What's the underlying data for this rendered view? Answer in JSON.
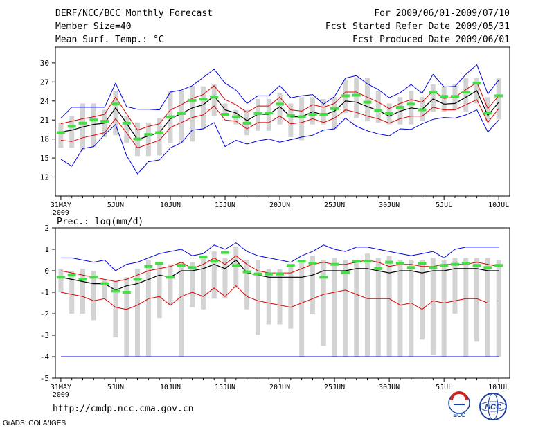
{
  "header": {
    "left_lines": [
      "DERF/NCC/BCC Monthly Forecast",
      "Member Size=40",
      "Mean Surf. Temp.: °C"
    ],
    "right_lines": [
      "For 2009/06/01-2009/07/10",
      "Fcst Started Refer Date 2009/05/31",
      "Fcst Produced Date 2009/06/01"
    ]
  },
  "footer": {
    "url": "http://cmdp.ncc.cma.gov.cn",
    "grads_credit": "GrADS: COLA/IGES",
    "logo_bcc": "BCC",
    "logo_ncc": "NCC"
  },
  "colors": {
    "frame": "#000000",
    "box": "#d3d3d3",
    "median": "#44dd44",
    "envelope": "#0000dd",
    "spread": "#dd0000",
    "mean": "#000000"
  },
  "chart_data": [
    {
      "type": "line",
      "title": "Mean Surf. Temp.: °C",
      "x": [
        0,
        1,
        2,
        3,
        4,
        5,
        6,
        7,
        8,
        9,
        10,
        11,
        12,
        13,
        14,
        15,
        16,
        17,
        18,
        19,
        20,
        21,
        22,
        23,
        24,
        25,
        26,
        27,
        28,
        29,
        30,
        31,
        32,
        33,
        34,
        35,
        36,
        37,
        38,
        39,
        40
      ],
      "x_tick_positions": [
        0,
        5,
        10,
        15,
        20,
        25,
        30,
        35,
        40
      ],
      "x_tick_labels": [
        "31MAY",
        "5JUN",
        "10JUN",
        "15JUN",
        "20JUN",
        "25JUN",
        "30JUN",
        "5JUL",
        "10JUL"
      ],
      "x_year_label": "2009",
      "xlim": [
        -0.5,
        41
      ],
      "ylim": [
        9,
        32.5
      ],
      "yticks": [
        12,
        15,
        18,
        21,
        24,
        27,
        30
      ],
      "series": [
        {
          "name": "ensemble max",
          "values": [
            14.8,
            13.7,
            16.5,
            16.8,
            18.7,
            20.3,
            15.4,
            12.5,
            14.4,
            14.7,
            16.6,
            17.4,
            19.4,
            19.6,
            20.6,
            16.8,
            17.8,
            17.2,
            17.7,
            18.0,
            17.5,
            17.9,
            18.3,
            18.6,
            19.4,
            19.6,
            21.3,
            20.0,
            19.3,
            18.8,
            18.5,
            19.6,
            19.5,
            20.4,
            21.1,
            21.4,
            21.3,
            21.8,
            22.6,
            19.1,
            21.0
          ]
        },
        {
          "name": "ensemble min",
          "values": [
            21.3,
            23.0,
            23.0,
            23.0,
            23.0,
            26.8,
            23.1,
            22.7,
            22.7,
            22.6,
            25.4,
            25.7,
            26.4,
            27.7,
            29.0,
            26.8,
            25.7,
            23.6,
            24.8,
            24.8,
            26.4,
            24.5,
            24.8,
            25.0,
            23.5,
            24.7,
            27.6,
            28.0,
            26.7,
            25.8,
            24.5,
            25.3,
            26.6,
            25.2,
            28.2,
            26.2,
            26.3,
            28.2,
            29.7,
            25.1,
            27.3
          ]
        },
        {
          "name": "mean - std",
          "values": [
            17.8,
            17.6,
            18.2,
            18.6,
            19.0,
            21.2,
            19.0,
            16.6,
            17.2,
            17.8,
            19.8,
            20.6,
            21.4,
            21.8,
            23.2,
            21.0,
            20.8,
            19.6,
            20.6,
            20.6,
            21.6,
            20.4,
            20.6,
            21.2,
            20.6,
            21.3,
            22.6,
            22.2,
            21.6,
            21.2,
            20.5,
            21.2,
            21.6,
            21.6,
            23.0,
            22.6,
            22.6,
            23.4,
            24.2,
            20.6,
            22.8
          ]
        },
        {
          "name": "mean + std",
          "values": [
            20.4,
            20.8,
            21.2,
            21.5,
            21.9,
            24.6,
            22.0,
            19.4,
            20.0,
            20.4,
            22.6,
            23.4,
            24.4,
            25.0,
            26.4,
            24.2,
            23.4,
            22.2,
            23.2,
            23.2,
            24.6,
            22.6,
            22.4,
            23.4,
            23.0,
            23.6,
            25.4,
            25.4,
            24.6,
            23.8,
            22.8,
            23.6,
            24.2,
            23.8,
            25.6,
            24.4,
            24.6,
            25.8,
            26.9,
            22.8,
            24.8
          ]
        },
        {
          "name": "ensemble mean",
          "values": [
            19.1,
            19.4,
            19.9,
            20.3,
            20.5,
            22.9,
            20.5,
            17.9,
            18.5,
            19.0,
            21.2,
            22.0,
            22.9,
            23.4,
            24.8,
            22.6,
            22.1,
            20.9,
            21.9,
            21.9,
            23.1,
            21.5,
            21.5,
            22.3,
            21.8,
            22.4,
            24.0,
            23.8,
            23.1,
            22.5,
            21.6,
            22.4,
            22.9,
            22.7,
            24.3,
            23.5,
            23.6,
            24.6,
            25.6,
            21.7,
            23.8
          ]
        },
        {
          "name": "median",
          "values": [
            19.0,
            20.0,
            20.5,
            21.0,
            20.8,
            23.5,
            20.5,
            18.0,
            18.7,
            19.0,
            21.5,
            22.0,
            24.1,
            24.3,
            24.6,
            21.9,
            21.5,
            20.5,
            22.0,
            22.1,
            23.5,
            21.7,
            21.5,
            21.9,
            21.9,
            22.8,
            24.8,
            24.9,
            23.8,
            22.5,
            22.0,
            23.0,
            23.5,
            22.6,
            25.4,
            24.7,
            24.7,
            25.4,
            26.8,
            22.1,
            24.8
          ]
        },
        {
          "name": "box q1",
          "values": [
            16.6,
            16.6,
            16.3,
            16.8,
            18.3,
            18.6,
            17.4,
            15.3,
            15.3,
            15.4,
            17.3,
            17.3,
            17.6,
            19.6,
            21.6,
            21.6,
            20.3,
            18.6,
            19.3,
            19.3,
            20.3,
            18.3,
            17.8,
            20.3,
            20.3,
            19.6,
            22.1,
            21.3,
            20.8,
            20.6,
            20.3,
            20.3,
            20.3,
            20.8,
            22.3,
            22.3,
            22.6,
            22.3,
            23.6,
            20.8,
            21.1
          ]
        },
        {
          "name": "box q3",
          "values": [
            20.6,
            21.6,
            23.6,
            23.6,
            22.6,
            25.6,
            21.6,
            20.6,
            20.6,
            21.3,
            25.6,
            25.6,
            26.3,
            26.3,
            26.6,
            23.6,
            22.6,
            22.6,
            24.3,
            24.3,
            25.3,
            23.6,
            24.6,
            24.6,
            24.3,
            24.6,
            27.3,
            27.6,
            27.6,
            25.6,
            23.6,
            24.6,
            25.6,
            24.6,
            26.6,
            26.3,
            26.6,
            27.6,
            27.6,
            24.6,
            27.6
          ]
        }
      ]
    },
    {
      "type": "line",
      "title": "Prec.: log(mm/d)",
      "x": [
        0,
        1,
        2,
        3,
        4,
        5,
        6,
        7,
        8,
        9,
        10,
        11,
        12,
        13,
        14,
        15,
        16,
        17,
        18,
        19,
        20,
        21,
        22,
        23,
        24,
        25,
        26,
        27,
        28,
        29,
        30,
        31,
        32,
        33,
        34,
        35,
        36,
        37,
        38,
        39,
        40
      ],
      "x_tick_positions": [
        0,
        5,
        10,
        15,
        20,
        25,
        30,
        35,
        40
      ],
      "x_tick_labels": [
        "31MAY",
        "5JUN",
        "10JUN",
        "15JUN",
        "20JUN",
        "25JUN",
        "30JUN",
        "5JUL",
        "10JUL"
      ],
      "x_year_label": "2009",
      "xlim": [
        -0.5,
        41
      ],
      "ylim": [
        -5,
        2
      ],
      "yticks": [
        -5,
        -4,
        -3,
        -2,
        -1,
        0,
        1,
        2
      ],
      "series": [
        {
          "name": "ensemble max",
          "values": [
            0.6,
            0.6,
            0.5,
            0.4,
            0.5,
            0.0,
            0.3,
            0.4,
            0.6,
            0.8,
            0.9,
            1.0,
            0.7,
            0.8,
            1.2,
            1.0,
            1.3,
            0.9,
            0.7,
            0.6,
            0.5,
            0.4,
            0.7,
            0.9,
            1.2,
            1.0,
            0.9,
            1.1,
            1.1,
            1.0,
            0.9,
            0.8,
            0.7,
            0.8,
            0.9,
            0.6,
            1.0,
            1.1,
            1.1,
            1.1,
            1.1
          ]
        },
        {
          "name": "ensemble min",
          "values": [
            -4.0,
            -4.0,
            -4.0,
            -4.0,
            -4.0,
            -4.0,
            -4.0,
            -4.0,
            -4.0,
            -4.0,
            -4.0,
            -4.0,
            -4.0,
            -4.0,
            -4.0,
            -4.0,
            -4.0,
            -4.0,
            -4.0,
            -4.0,
            -4.0,
            -4.0,
            -4.0,
            -4.0,
            -4.0,
            -4.0,
            -4.0,
            -4.0,
            -4.0,
            -4.0,
            -4.0,
            -4.0,
            -4.0,
            -4.0,
            -4.0,
            -4.0,
            -4.0,
            -4.0,
            -4.0,
            -4.0,
            -4.0
          ]
        },
        {
          "name": "mean + std",
          "values": [
            0.0,
            -0.1,
            -0.2,
            -0.3,
            -0.4,
            -0.5,
            -0.4,
            -0.2,
            0.0,
            0.1,
            0.2,
            0.4,
            0.1,
            0.3,
            0.6,
            0.3,
            0.7,
            0.3,
            0.0,
            -0.1,
            -0.1,
            -0.1,
            0.1,
            0.3,
            0.4,
            0.3,
            0.3,
            0.4,
            0.5,
            0.4,
            0.2,
            0.3,
            0.3,
            0.2,
            0.2,
            0.3,
            0.3,
            0.3,
            0.4,
            0.3,
            0.2
          ]
        },
        {
          "name": "mean - std",
          "values": [
            -1.0,
            -1.1,
            -1.2,
            -1.4,
            -1.3,
            -1.7,
            -1.8,
            -1.6,
            -1.3,
            -1.2,
            -1.6,
            -1.2,
            -1.0,
            -1.2,
            -0.8,
            -1.2,
            -0.7,
            -1.2,
            -1.4,
            -1.5,
            -1.6,
            -1.7,
            -1.5,
            -1.3,
            -1.1,
            -1.0,
            -0.9,
            -1.1,
            -1.3,
            -1.3,
            -1.3,
            -1.6,
            -1.5,
            -1.8,
            -1.4,
            -1.5,
            -1.4,
            -1.3,
            -1.3,
            -1.5,
            -1.5
          ]
        },
        {
          "name": "ensemble mean",
          "values": [
            -0.3,
            -0.4,
            -0.5,
            -0.6,
            -0.6,
            -0.9,
            -0.7,
            -0.6,
            -0.4,
            -0.2,
            -0.3,
            0.0,
            0.0,
            0.1,
            0.3,
            0.1,
            0.5,
            -0.1,
            -0.2,
            -0.3,
            -0.3,
            -0.3,
            -0.3,
            -0.2,
            0.0,
            0.0,
            0.0,
            0.1,
            0.1,
            0.0,
            -0.1,
            0.0,
            0.0,
            -0.1,
            0.0,
            0.0,
            0.1,
            0.1,
            0.1,
            0.0,
            0.0
          ]
        },
        {
          "name": "median",
          "values": [
            -0.3,
            -0.2,
            -0.4,
            -0.3,
            -0.6,
            -0.95,
            -1.0,
            -0.4,
            0.2,
            0.35,
            -0.3,
            0.25,
            0.15,
            0.65,
            0.45,
            0.85,
            0.25,
            -0.05,
            -0.15,
            -0.15,
            -0.15,
            0.25,
            0.45,
            0.35,
            -0.3,
            0.3,
            -0.1,
            0.45,
            0.45,
            0.1,
            0.4,
            0.35,
            0.15,
            0.35,
            0.15,
            0.25,
            0.3,
            0.35,
            0.25,
            0.15,
            0.25
          ]
        },
        {
          "name": "box q1",
          "values": [
            -1.0,
            -2.0,
            -2.0,
            -2.3,
            -1.3,
            -3.1,
            -4.0,
            -4.0,
            -4.0,
            -2.2,
            -1.6,
            -4.0,
            -1.7,
            -1.8,
            -1.3,
            -1.3,
            -0.8,
            -1.8,
            -3.0,
            -2.5,
            -2.5,
            -2.7,
            -4.0,
            -2.0,
            -3.5,
            -4.0,
            -4.0,
            -4.0,
            -4.0,
            -4.0,
            -4.0,
            -4.0,
            -4.0,
            -3.2,
            -3.9,
            -4.0,
            -2.0,
            -4.0,
            -3.3,
            -4.0,
            -4.0
          ]
        },
        {
          "name": "box q3",
          "values": [
            0.1,
            0.0,
            0.1,
            0.0,
            -0.4,
            -0.5,
            -0.3,
            0.1,
            0.5,
            0.4,
            0.3,
            0.4,
            0.4,
            0.7,
            0.9,
            0.6,
            1.1,
            0.5,
            0.5,
            0.1,
            0.1,
            0.2,
            0.5,
            0.7,
            0.5,
            0.6,
            0.5,
            0.5,
            0.8,
            0.6,
            0.7,
            0.5,
            0.5,
            0.5,
            0.6,
            0.5,
            0.6,
            0.6,
            0.6,
            0.6,
            0.5
          ]
        }
      ]
    }
  ]
}
